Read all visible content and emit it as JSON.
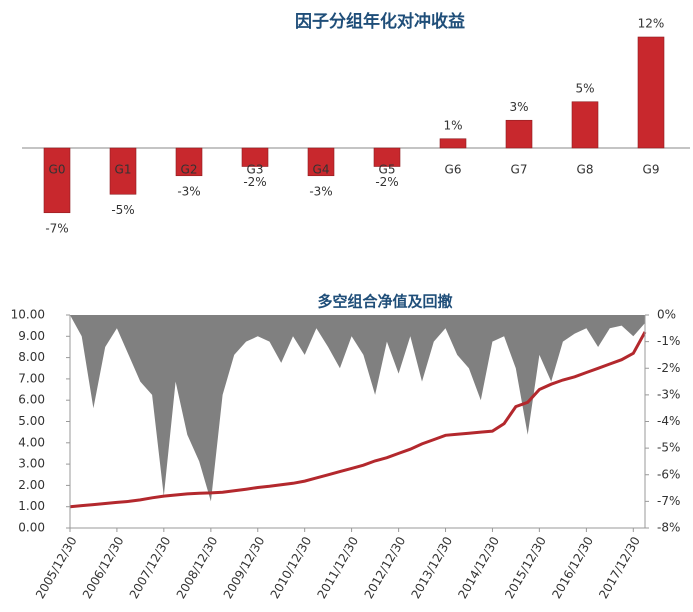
{
  "chart_data": [
    {
      "type": "bar",
      "title": "因子分组年化对冲收益",
      "categories": [
        "G0",
        "G1",
        "G2",
        "G3",
        "G4",
        "G5",
        "G6",
        "G7",
        "G8",
        "G9"
      ],
      "values": [
        -7,
        -5,
        -3,
        -2,
        -3,
        -2,
        1,
        3,
        5,
        12
      ],
      "value_labels": [
        "-7%",
        "-5%",
        "-3%",
        "-2%",
        "-3%",
        "-2%",
        "1%",
        "3%",
        "5%",
        "12%"
      ],
      "color": "#c8282d"
    },
    {
      "type": "line",
      "title": "多空组合净值及回撤",
      "x": [
        "2005/12/30",
        "2006/03/31",
        "2006/06/30",
        "2006/09/30",
        "2006/12/30",
        "2007/03/31",
        "2007/06/30",
        "2007/09/30",
        "2007/12/30",
        "2008/03/31",
        "2008/06/30",
        "2008/09/30",
        "2008/12/30",
        "2009/03/31",
        "2009/06/30",
        "2009/09/30",
        "2009/12/30",
        "2010/03/31",
        "2010/06/30",
        "2010/09/30",
        "2010/12/30",
        "2011/03/31",
        "2011/06/30",
        "2011/09/30",
        "2011/12/30",
        "2012/03/31",
        "2012/06/30",
        "2012/09/30",
        "2012/12/30",
        "2013/03/31",
        "2013/06/30",
        "2013/09/30",
        "2013/12/30",
        "2014/03/31",
        "2014/06/30",
        "2014/09/30",
        "2014/12/30",
        "2015/03/31",
        "2015/06/30",
        "2015/09/30",
        "2015/12/30",
        "2016/03/31",
        "2016/06/30",
        "2016/09/30",
        "2016/12/30",
        "2017/03/31",
        "2017/06/30",
        "2017/09/30",
        "2017/12/30",
        "2018/03/31"
      ],
      "series": [
        {
          "type": "area",
          "axis": "y2",
          "color": "#808080",
          "values": [
            0,
            -0.8,
            -3.5,
            -1.2,
            -0.5,
            -1.5,
            -2.5,
            -3.0,
            -6.8,
            -2.5,
            -4.5,
            -5.5,
            -7.0,
            -3.0,
            -1.5,
            -1.0,
            -0.8,
            -1.0,
            -1.8,
            -0.8,
            -1.5,
            -0.5,
            -1.2,
            -2.0,
            -0.8,
            -1.5,
            -3.0,
            -1.0,
            -2.2,
            -0.8,
            -2.5,
            -1.0,
            -0.5,
            -1.5,
            -2.0,
            -3.2,
            -1.0,
            -0.8,
            -2.0,
            -4.5,
            -1.5,
            -2.5,
            -1.0,
            -0.7,
            -0.5,
            -1.2,
            -0.5,
            -0.4,
            -0.8,
            -0.3
          ]
        },
        {
          "type": "line",
          "color": "#b3282d",
          "values": [
            1.0,
            1.05,
            1.1,
            1.15,
            1.2,
            1.25,
            1.32,
            1.42,
            1.5,
            1.55,
            1.6,
            1.63,
            1.65,
            1.68,
            1.75,
            1.82,
            1.9,
            1.96,
            2.03,
            2.1,
            2.2,
            2.35,
            2.5,
            2.65,
            2.8,
            2.95,
            3.15,
            3.3,
            3.5,
            3.7,
            3.95,
            4.15,
            4.35,
            4.4,
            4.45,
            4.5,
            4.55,
            4.9,
            5.7,
            5.9,
            6.5,
            6.75,
            6.95,
            7.1,
            7.3,
            7.5,
            7.7,
            7.9,
            8.2,
            9.2
          ]
        }
      ],
      "xlim": [
        "2005/12/30",
        "2018/03/31"
      ],
      "xticks": [
        "2005/12/30",
        "2006/12/30",
        "2007/12/30",
        "2008/12/30",
        "2009/12/30",
        "2010/12/30",
        "2011/12/30",
        "2012/12/30",
        "2013/12/30",
        "2014/12/30",
        "2015/12/30",
        "2016/12/30",
        "2017/12/30"
      ],
      "ylim": [
        0,
        10
      ],
      "yticks": [
        {
          "value": 0,
          "label": "0.00"
        },
        {
          "value": 1,
          "label": "1.00"
        },
        {
          "value": 2,
          "label": "2.00"
        },
        {
          "value": 3,
          "label": "3.00"
        },
        {
          "value": 4,
          "label": "4.00"
        },
        {
          "value": 5,
          "label": "5.00"
        },
        {
          "value": 6,
          "label": "6.00"
        },
        {
          "value": 7,
          "label": "7.00"
        },
        {
          "value": 8,
          "label": "8.00"
        },
        {
          "value": 9,
          "label": "9.00"
        },
        {
          "value": 10,
          "label": "10.00"
        }
      ],
      "y2lim": [
        -8,
        0
      ],
      "y2ticks": [
        {
          "value": 0,
          "label": "0%"
        },
        {
          "value": -1,
          "label": "-1%"
        },
        {
          "value": -2,
          "label": "-2%"
        },
        {
          "value": -3,
          "label": "-3%"
        },
        {
          "value": -4,
          "label": "-4%"
        },
        {
          "value": -5,
          "label": "-5%"
        },
        {
          "value": -6,
          "label": "-6%"
        },
        {
          "value": -7,
          "label": "-7%"
        },
        {
          "value": -8,
          "label": "-8%"
        }
      ]
    }
  ]
}
